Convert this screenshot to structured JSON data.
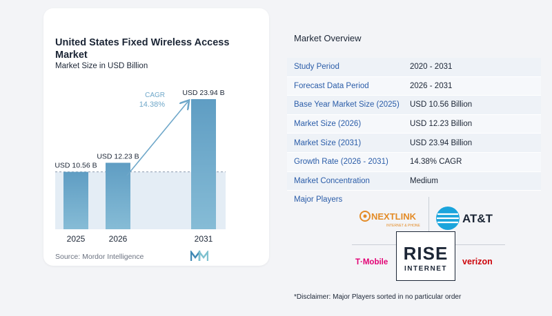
{
  "left_card": {
    "title": "United States Fixed Wireless Access Market",
    "subtitle": "Market Size in USD Billion",
    "source": "Source:  Mordor Intelligence"
  },
  "chart_data": {
    "type": "bar",
    "categories": [
      "2025",
      "2026",
      "2031"
    ],
    "values": [
      10.56,
      12.23,
      23.94
    ],
    "value_labels": [
      "USD 10.56 B",
      "USD 12.23 B",
      "USD 23.94 B"
    ],
    "cagr_label": "CAGR",
    "cagr_value": "14.38%",
    "unit": "USD Billion",
    "bar_color": "#6ea7c9",
    "band_color": "#e4edf5"
  },
  "overview": {
    "title": "Market Overview",
    "rows": [
      {
        "label": "Study Period",
        "value": "2020 - 2031"
      },
      {
        "label": "Forecast Data Period",
        "value": "2026 - 2031"
      },
      {
        "label": "Base Year Market Size (2025)",
        "value": "USD 10.56 Billion"
      },
      {
        "label": "Market Size (2026)",
        "value": "USD 12.23 Billion"
      },
      {
        "label": "Market Size (2031)",
        "value": "USD 23.94 Billion"
      },
      {
        "label": "Growth Rate (2026 - 2031)",
        "value": "14.38% CAGR"
      },
      {
        "label": "Market Concentration",
        "value": "Medium"
      }
    ],
    "players_title": "Major Players",
    "players": {
      "nextlink": "NEXTLINK",
      "nextlink_tagline": "INTERNET & PHONE",
      "att": "AT&T",
      "tmobile": "T·Mobile",
      "rise_top": "RISE",
      "rise_bottom": "INTERNET",
      "verizon": "verizon"
    },
    "disclaimer": "*Disclaimer: Major Players sorted in no particular order"
  }
}
